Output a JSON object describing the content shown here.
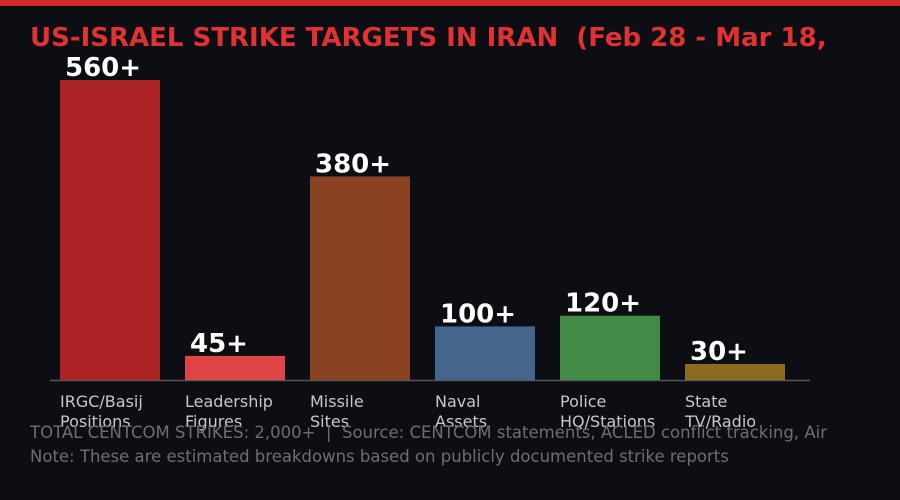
{
  "chart_data": {
    "type": "bar",
    "title": "US-ISRAEL STRIKE TARGETS IN IRAN  (Feb 28 - Mar 18,",
    "categories": [
      "IRGC/Basij\nPositions",
      "Leadership\nFigures",
      "Missile\nSites",
      "Naval\nAssets",
      "Police\nHQ/Stations",
      "State\nTV/Radio"
    ],
    "values": [
      560,
      45,
      380,
      100,
      120,
      30
    ],
    "value_labels": [
      "560+",
      "45+",
      "380+",
      "100+",
      "120+",
      "30+"
    ],
    "colors": [
      "#ac2325",
      "#df4547",
      "#8a4222",
      "#43668a",
      "#428a46",
      "#8c6a21"
    ],
    "ylim": [
      0,
      560
    ],
    "footnotes": [
      "TOTAL CENTCOM STRIKES: 2,000+  |  Source: CENTCOM statements, ACLED conflict tracking, Air",
      "Note: These are estimated breakdowns based on publicly documented strike reports"
    ]
  }
}
